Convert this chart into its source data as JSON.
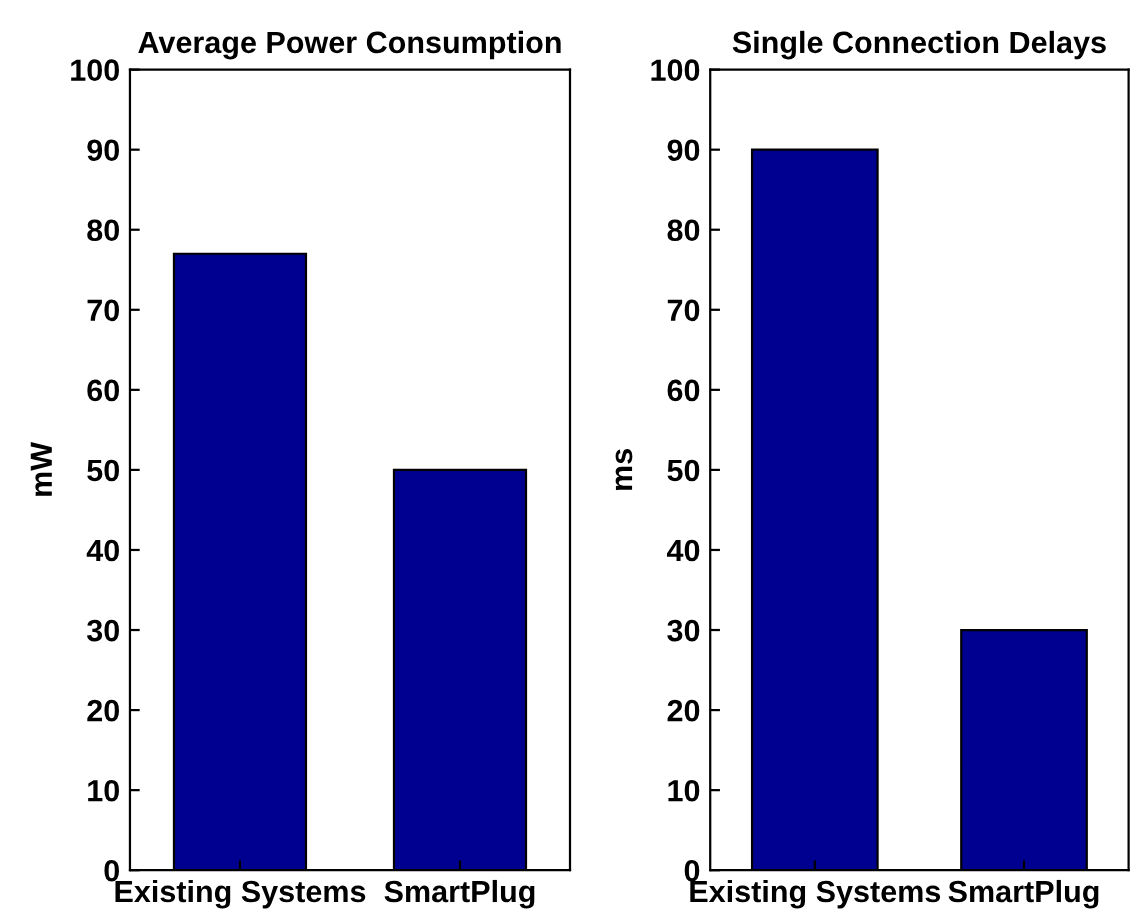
{
  "chart_data": [
    {
      "type": "bar",
      "title": "Average Power Consumption",
      "ylabel": "mW",
      "categories": [
        "Existing Systems",
        "SmartPlug"
      ],
      "values": [
        77,
        50
      ],
      "color": "#000090",
      "ylim": [
        0,
        100
      ],
      "yticks": [
        0,
        10,
        20,
        30,
        40,
        50,
        60,
        70,
        80,
        90,
        100
      ],
      "grid": false
    },
    {
      "type": "bar",
      "title": "Single Connection Delays",
      "ylabel": "ms",
      "categories": [
        "Existing Systems",
        "SmartPlug"
      ],
      "values": [
        90,
        30
      ],
      "color": "#000090",
      "ylim": [
        0,
        100
      ],
      "yticks": [
        0,
        10,
        20,
        30,
        40,
        50,
        60,
        70,
        80,
        90,
        100
      ],
      "grid": false
    }
  ]
}
